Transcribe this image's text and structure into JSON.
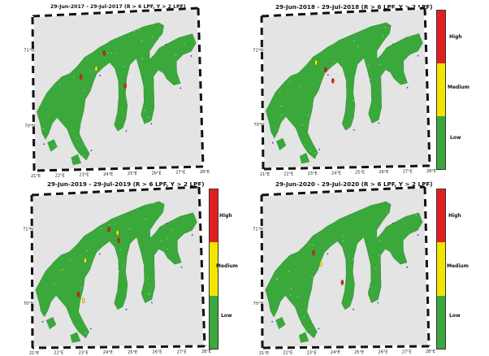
{
  "colors": {
    "frame_dark": "#111111",
    "frame_light": "#ffffff",
    "sea": "#e4e4e4",
    "land": "#3aa83a",
    "high": "#e02020",
    "medium": "#f2e600",
    "low": "#3aa83a",
    "vessel": "#2a3fcf"
  },
  "legend": {
    "high": "High",
    "medium": "Medium",
    "low": "Low"
  },
  "panels": [
    {
      "title": "29-Jun-2017  - 29-Jul-2017  (R > 6 LPF, Y > 2 LPF)",
      "lon_ticks": [
        "21°E",
        "22°E",
        "23°E",
        "24°E",
        "25°E",
        "26°E",
        "27°E",
        "28°E"
      ],
      "lat_ticks": [
        "71°N",
        "70°N"
      ],
      "has_colorbar": false,
      "hotspots": [
        {
          "lon": 24.0,
          "lat": 70.92,
          "level": "high"
        },
        {
          "lon": 23.65,
          "lat": 70.72,
          "level": "medium"
        },
        {
          "lon": 23.0,
          "lat": 70.62,
          "level": "high"
        },
        {
          "lon": 24.85,
          "lat": 70.48,
          "level": "high"
        }
      ]
    },
    {
      "title": "29-Jun-2018  - 29-Jul-2018  (R > 6 LPF, Y > 2 LPF)",
      "lon_ticks": [
        "21°E",
        "22°E",
        "23°E",
        "24°E",
        "25°E",
        "26°E",
        "27°E",
        "28°E"
      ],
      "lat_ticks": [
        "71°N",
        "70°N"
      ],
      "has_colorbar": true,
      "hotspots": [
        {
          "lon": 23.3,
          "lat": 70.8,
          "level": "medium"
        },
        {
          "lon": 23.7,
          "lat": 70.7,
          "level": "high"
        },
        {
          "lon": 24.0,
          "lat": 70.55,
          "level": "high"
        }
      ]
    },
    {
      "title": "29-Jun-2019  - 29-Jul-2019  (R > 6 LPF, Y > 2 LPF)",
      "lon_ticks": [
        "21°E",
        "22°E",
        "23°E",
        "24°E",
        "25°E",
        "26°E",
        "27°E",
        "28°E"
      ],
      "lat_ticks": [
        "71°N",
        "70°N"
      ],
      "has_colorbar": true,
      "hotspots": [
        {
          "lon": 24.2,
          "lat": 70.95,
          "level": "high"
        },
        {
          "lon": 24.55,
          "lat": 70.9,
          "level": "medium"
        },
        {
          "lon": 23.2,
          "lat": 70.55,
          "level": "medium"
        },
        {
          "lon": 22.9,
          "lat": 70.1,
          "level": "high"
        },
        {
          "lon": 23.1,
          "lat": 70.02,
          "level": "medium"
        },
        {
          "lon": 24.6,
          "lat": 70.8,
          "level": "high"
        }
      ]
    },
    {
      "title": "29-Jun-2020  - 29-Jul-2020  (R > 6 LPF, Y > 2 LPF)",
      "lon_ticks": [
        "21°E",
        "22°E",
        "23°E",
        "24°E",
        "25°E",
        "26°E",
        "27°E",
        "28°E"
      ],
      "lat_ticks": [
        "71°N",
        "70°N"
      ],
      "has_colorbar": true,
      "hotspots": [
        {
          "lon": 23.2,
          "lat": 70.65,
          "level": "high"
        },
        {
          "lon": 23.5,
          "lat": 70.5,
          "level": "medium"
        },
        {
          "lon": 24.4,
          "lat": 70.25,
          "level": "high"
        }
      ]
    }
  ]
}
